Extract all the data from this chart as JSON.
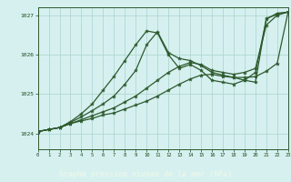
{
  "title": "Graphe pression niveau de la mer (hPa)",
  "bg_color": "#d6f0f0",
  "label_bg": "#4a7a4a",
  "grid_color": "#b0d8d0",
  "line_color": "#2d5a2d",
  "text_color": "#1a4a1a",
  "label_text_color": "#e8f8e8",
  "xlim": [
    0,
    23
  ],
  "ylim": [
    1023.6,
    1027.2
  ],
  "yticks": [
    1024,
    1025,
    1026,
    1027
  ],
  "xticks": [
    0,
    1,
    2,
    3,
    4,
    5,
    6,
    7,
    8,
    9,
    10,
    11,
    12,
    13,
    14,
    15,
    16,
    17,
    18,
    19,
    20,
    21,
    22,
    23
  ],
  "series": [
    [
      1024.05,
      1024.1,
      1024.15,
      1024.3,
      1024.5,
      1024.75,
      1025.1,
      1025.45,
      1025.85,
      1026.25,
      1026.6,
      1026.55,
      1026.0,
      1025.65,
      1025.75,
      1025.6,
      1025.35,
      1025.3,
      1025.25,
      1025.35,
      1025.55,
      1026.9,
      1027.05,
      1027.08
    ],
    [
      1024.05,
      1024.1,
      1024.15,
      1024.25,
      1024.35,
      1024.45,
      1024.55,
      1024.65,
      1024.8,
      1024.95,
      1025.15,
      1025.35,
      1025.55,
      1025.7,
      1025.8,
      1025.75,
      1025.6,
      1025.55,
      1025.5,
      1025.55,
      1025.65,
      1026.75,
      1027.0,
      1027.08
    ],
    [
      1024.05,
      1024.1,
      1024.15,
      1024.25,
      1024.32,
      1024.38,
      1024.47,
      1024.52,
      1024.62,
      1024.72,
      1024.82,
      1024.95,
      1025.1,
      1025.25,
      1025.38,
      1025.48,
      1025.5,
      1025.45,
      1025.42,
      1025.42,
      1025.44,
      1025.58,
      1025.78,
      1027.08
    ],
    [
      1024.05,
      1024.1,
      1024.15,
      1024.28,
      1024.42,
      1024.58,
      1024.75,
      1024.95,
      1025.25,
      1025.6,
      1026.25,
      1026.58,
      1026.05,
      1025.9,
      1025.85,
      1025.72,
      1025.55,
      1025.48,
      1025.42,
      1025.35,
      1025.3,
      1026.92,
      1027.02,
      1027.08
    ]
  ]
}
